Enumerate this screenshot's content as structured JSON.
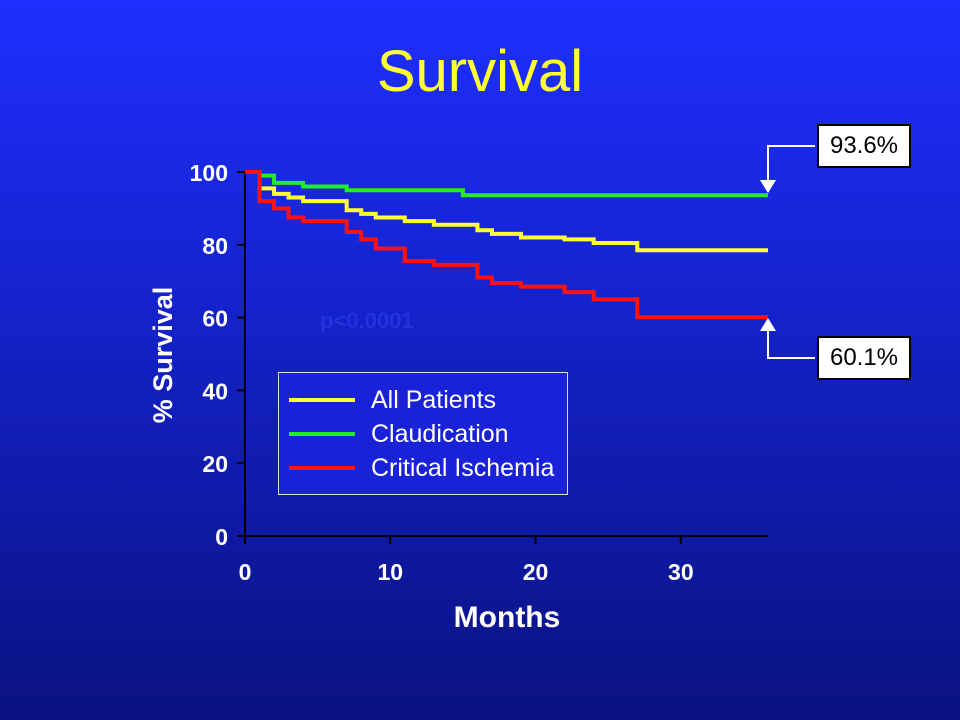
{
  "title": "Survival",
  "annotations": {
    "top_callout": "93.6%",
    "bottom_callout": "60.1%",
    "pvalue": "p<0.0001"
  },
  "chart_data": {
    "type": "line",
    "xlabel": "Months",
    "ylabel": "% Survival",
    "xlim": [
      0,
      36
    ],
    "ylim": [
      0,
      100
    ],
    "xticks": [
      0,
      10,
      20,
      30
    ],
    "yticks": [
      0,
      20,
      40,
      60,
      80,
      100
    ],
    "grid": false,
    "legend_position": "lower-left inside plot",
    "series": [
      {
        "name": "All Patients",
        "color": "#ffff33",
        "step": true,
        "x": [
          0,
          1,
          2,
          3,
          4,
          7,
          8,
          9,
          11,
          13,
          16,
          17,
          19,
          22,
          24,
          27,
          36
        ],
        "y": [
          100,
          95.5,
          94,
          93,
          92,
          89.5,
          88.5,
          87.5,
          86.5,
          85.5,
          84,
          83,
          82,
          81.5,
          80.5,
          78.5,
          78.5
        ]
      },
      {
        "name": "Claudication",
        "color": "#22ee22",
        "step": true,
        "x": [
          0,
          1,
          2,
          4,
          7,
          15,
          36
        ],
        "y": [
          100,
          99,
          97,
          96,
          95,
          93.6,
          93.6
        ]
      },
      {
        "name": "Critical Ischemia",
        "color": "#ff1111",
        "step": true,
        "x": [
          0,
          1,
          2,
          3,
          4,
          7,
          8,
          9,
          11,
          13,
          16,
          17,
          19,
          22,
          24,
          27,
          36
        ],
        "y": [
          100,
          92,
          90,
          87.5,
          86.5,
          83.5,
          81.5,
          79,
          75.5,
          74.5,
          71,
          69.5,
          68.5,
          67,
          65,
          60.1,
          60.1
        ]
      }
    ]
  }
}
